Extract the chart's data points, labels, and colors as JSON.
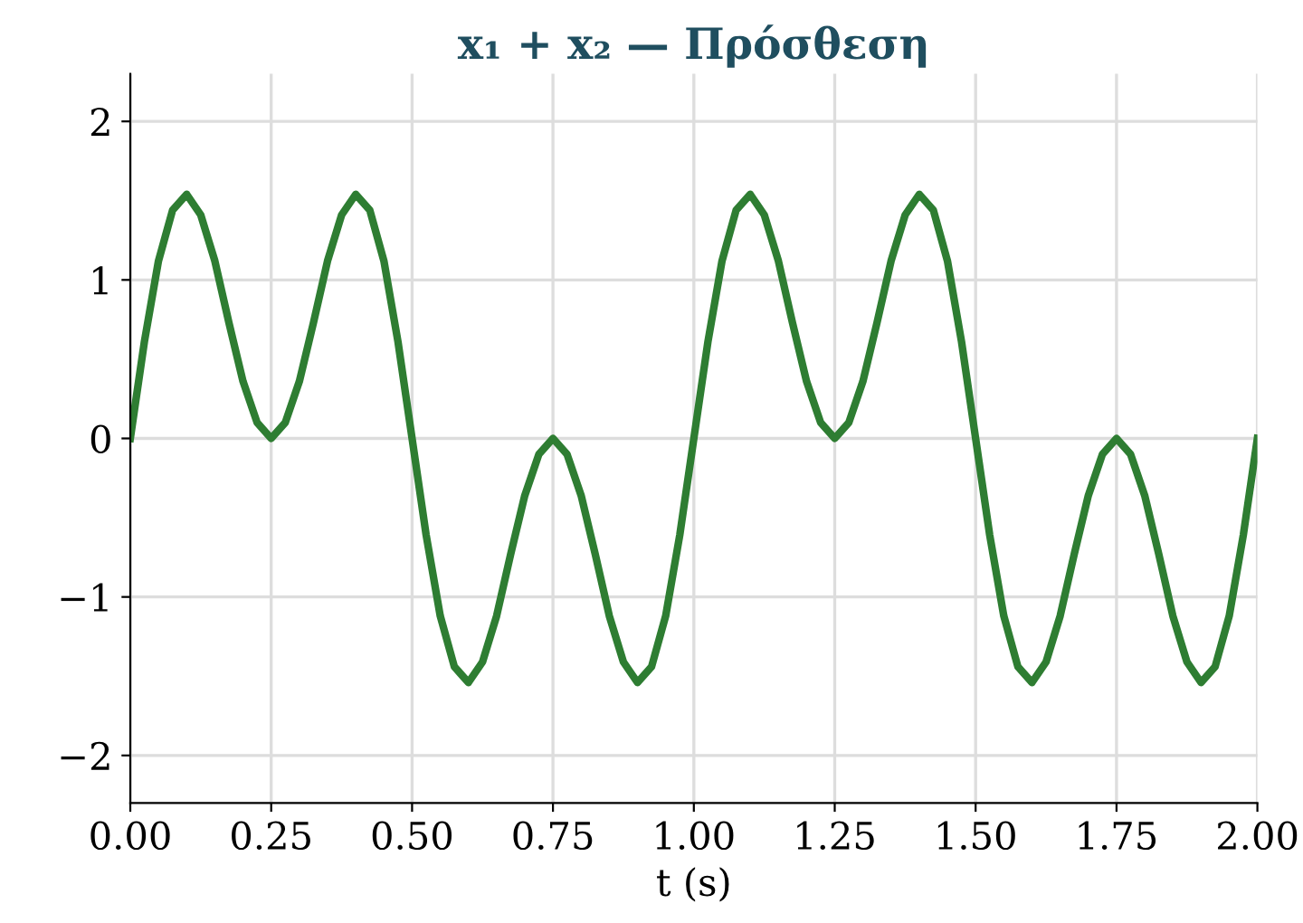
{
  "chart_data": {
    "type": "line",
    "title": "x₁ + x₂ — Πρόσθεση",
    "xlabel": "t (s)",
    "x": [
      0,
      0.025,
      0.05,
      0.075,
      0.1,
      0.125,
      0.15,
      0.175,
      0.2,
      0.225,
      0.25,
      0.275,
      0.3,
      0.325,
      0.35,
      0.375,
      0.4,
      0.425,
      0.45,
      0.475,
      0.5,
      0.525,
      0.55,
      0.575,
      0.6,
      0.625,
      0.65,
      0.675,
      0.7,
      0.725,
      0.75,
      0.775,
      0.8,
      0.825,
      0.85,
      0.875,
      0.9,
      0.925,
      0.95,
      0.975,
      1.0,
      1.025,
      1.05,
      1.075,
      1.1,
      1.125,
      1.15,
      1.175,
      1.2,
      1.225,
      1.25,
      1.275,
      1.3,
      1.325,
      1.35,
      1.375,
      1.4,
      1.425,
      1.45,
      1.475,
      1.5,
      1.525,
      1.55,
      1.575,
      1.6,
      1.625,
      1.65,
      1.675,
      1.7,
      1.725,
      1.75,
      1.775,
      1.8,
      1.825,
      1.85,
      1.875,
      1.9,
      1.925,
      1.95,
      1.975,
      2.0
    ],
    "series": [
      {
        "color": "#2e7d32",
        "values": [
          0,
          0.61,
          1.12,
          1.44,
          1.54,
          1.41,
          1.12,
          0.73,
          0.36,
          0.1,
          0,
          0.1,
          0.36,
          0.73,
          1.12,
          1.41,
          1.54,
          1.44,
          1.12,
          0.61,
          0,
          -0.61,
          -1.12,
          -1.44,
          -1.54,
          -1.41,
          -1.12,
          -0.73,
          -0.36,
          -0.1,
          0,
          -0.1,
          -0.36,
          -0.73,
          -1.12,
          -1.41,
          -1.54,
          -1.44,
          -1.12,
          -0.61,
          0,
          0.61,
          1.12,
          1.44,
          1.54,
          1.41,
          1.12,
          0.73,
          0.36,
          0.1,
          0,
          0.1,
          0.36,
          0.73,
          1.12,
          1.41,
          1.54,
          1.44,
          1.12,
          0.61,
          0,
          -0.61,
          -1.12,
          -1.44,
          -1.54,
          -1.41,
          -1.12,
          -0.73,
          -0.36,
          -0.1,
          0,
          -0.1,
          -0.36,
          -0.73,
          -1.12,
          -1.41,
          -1.54,
          -1.44,
          -1.12,
          -0.61,
          0
        ]
      }
    ],
    "xlim": [
      0,
      2
    ],
    "xticks": [
      {
        "value": 0,
        "label": "0.00"
      },
      {
        "value": 0.25,
        "label": "0.25"
      },
      {
        "value": 0.5,
        "label": "0.50"
      },
      {
        "value": 0.75,
        "label": "0.75"
      },
      {
        "value": 1,
        "label": "1.00"
      },
      {
        "value": 1.25,
        "label": "1.25"
      },
      {
        "value": 1.5,
        "label": "1.50"
      },
      {
        "value": 1.75,
        "label": "1.75"
      },
      {
        "value": 2,
        "label": "2.00"
      }
    ],
    "ylim": [
      -2.3,
      2.3
    ],
    "yticks": [
      {
        "value": -2,
        "label": "−2"
      },
      {
        "value": -1,
        "label": "−1"
      },
      0,
      1,
      2
    ],
    "grid": true,
    "line_style": "solid",
    "marker": "none",
    "legend": false
  }
}
